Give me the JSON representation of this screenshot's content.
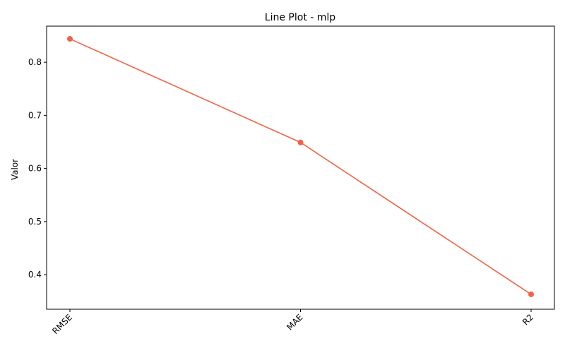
{
  "chart_data": {
    "type": "line",
    "title": "Line Plot - mlp",
    "xlabel": "",
    "ylabel": "Valor",
    "categories": [
      "RMSE",
      "MAE",
      "R2"
    ],
    "series": [
      {
        "values": [
          0.844,
          0.649,
          0.363
        ],
        "color": "#f06445",
        "marker": "circle"
      }
    ],
    "ylim": [
      0.335,
      0.868
    ],
    "yticks": [
      0.4,
      0.5,
      0.6,
      0.7,
      0.8
    ],
    "ytick_labels": [
      "0.4",
      "0.5",
      "0.6",
      "0.7",
      "0.8"
    ],
    "xtick_rotation": 45,
    "grid": false,
    "legend": "none"
  }
}
